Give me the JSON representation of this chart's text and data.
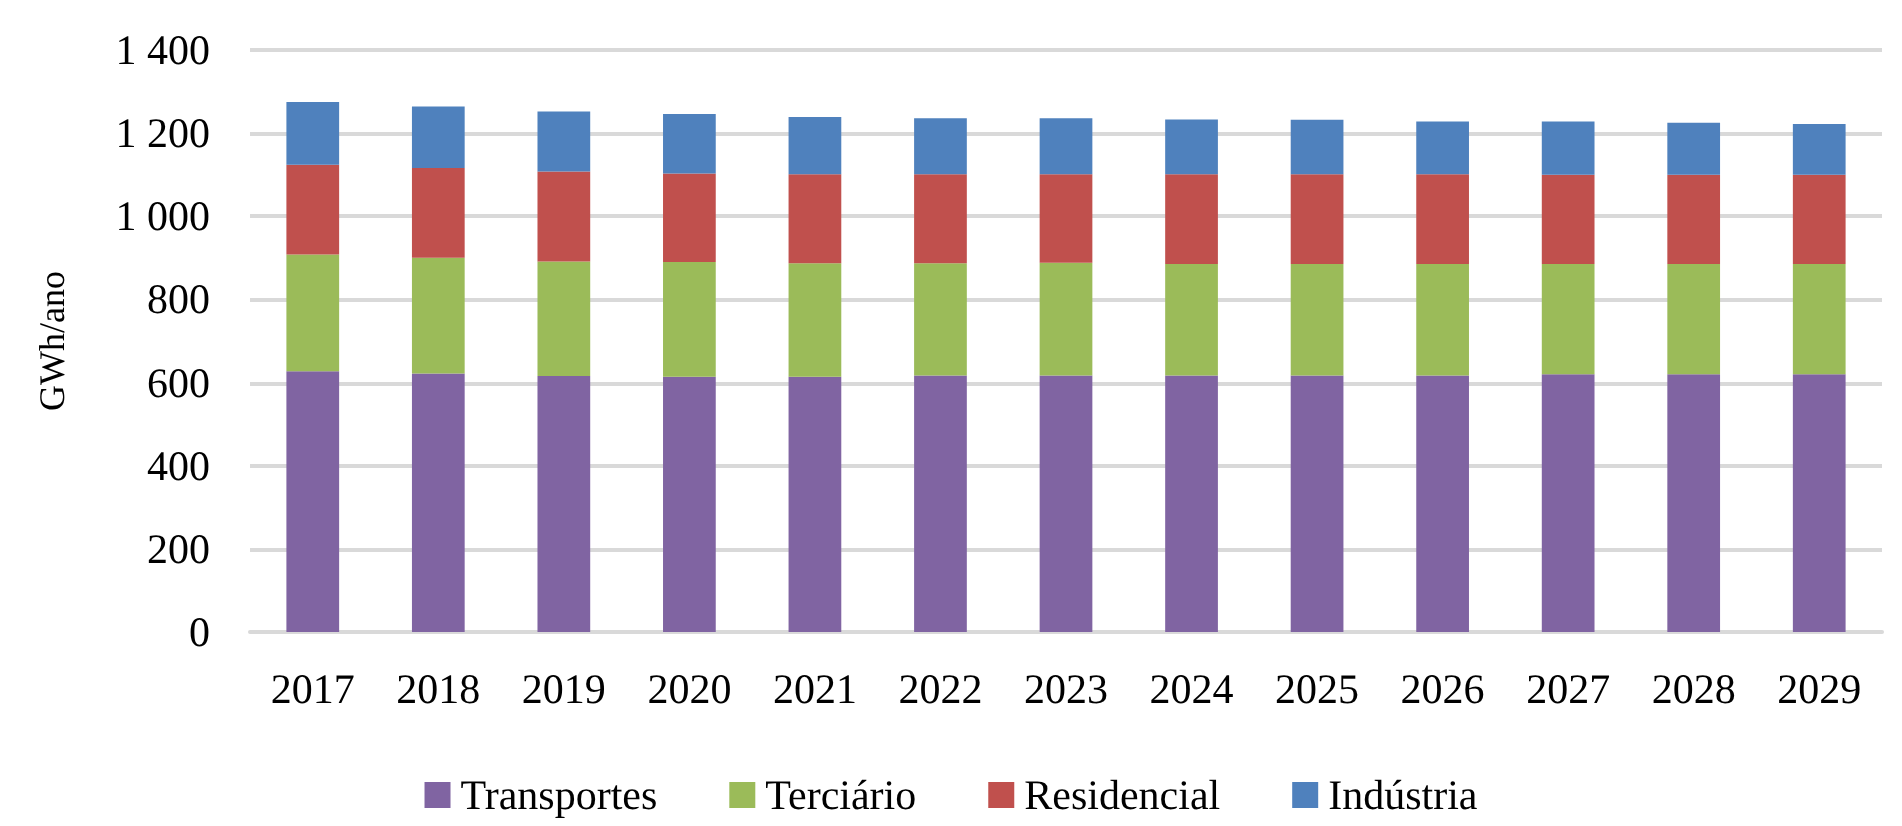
{
  "chart_data": {
    "type": "bar",
    "stacked": true,
    "ylabel": "GWh/ano",
    "categories": [
      "2017",
      "2018",
      "2019",
      "2020",
      "2021",
      "2022",
      "2023",
      "2024",
      "2025",
      "2026",
      "2027",
      "2028",
      "2029"
    ],
    "series": [
      {
        "name": "Transportes",
        "color": "#8064a2",
        "values": [
          627,
          622,
          616,
          614,
          614,
          617,
          617,
          617,
          617,
          617,
          620,
          620,
          620
        ]
      },
      {
        "name": "Terciário",
        "color": "#9bbb59",
        "values": [
          281,
          278,
          275,
          276,
          273,
          270,
          271,
          268,
          268,
          268,
          265,
          265,
          265
        ]
      },
      {
        "name": "Residencial",
        "color": "#c0504d",
        "values": [
          216,
          216,
          217,
          213,
          214,
          214,
          213,
          216,
          216,
          216,
          215,
          215,
          215
        ]
      },
      {
        "name": "Indústria",
        "color": "#4f81bd",
        "values": [
          151,
          148,
          144,
          143,
          138,
          135,
          135,
          132,
          131,
          127,
          128,
          125,
          122
        ]
      }
    ],
    "ylim": [
      0,
      1400
    ],
    "yticks": [
      0,
      200,
      400,
      600,
      800,
      {
        "value": 1000,
        "label": "1 000"
      },
      {
        "value": 1200,
        "label": "1 200"
      },
      {
        "value": 1400,
        "label": "1 400"
      }
    ],
    "grid": "y",
    "legend": "bottom"
  }
}
